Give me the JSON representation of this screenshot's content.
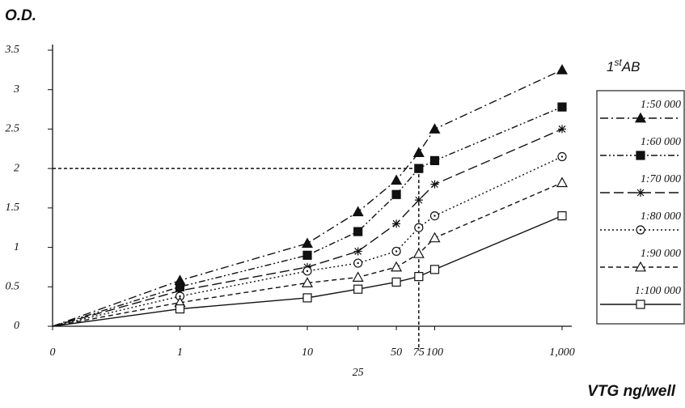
{
  "chart_data": {
    "type": "line",
    "y_label": "O.D.",
    "x_label": "VTG ng/well",
    "legend_title": [
      "1",
      "st",
      "AB"
    ],
    "xscale": "log",
    "x": [
      0,
      1,
      10,
      25,
      50,
      75,
      100,
      1000
    ],
    "xlim": [
      0.1,
      1000
    ],
    "xticks": [
      0,
      1,
      10,
      25,
      50,
      75,
      100,
      {
        "value": 1000,
        "label": "1,000"
      }
    ],
    "ylim": [
      0,
      3.5
    ],
    "yticks": [
      0,
      0.5,
      1,
      1.5,
      2,
      2.5,
      3,
      3.5
    ],
    "guide": {
      "x": 75,
      "y": 2
    },
    "series": [
      {
        "name": "1:50 000",
        "color": "#111111",
        "marker": "triangle-filled",
        "dash": "10 4 2 4",
        "values": [
          0,
          0.58,
          1.05,
          1.45,
          1.85,
          2.2,
          2.5,
          3.25
        ]
      },
      {
        "name": "1:60 000",
        "color": "#111111",
        "marker": "square-filled",
        "dash": "8 3 2 3 2 3",
        "values": [
          0,
          0.5,
          0.9,
          1.2,
          1.67,
          2.0,
          2.1,
          2.78
        ]
      },
      {
        "name": "1:70 000",
        "color": "#111111",
        "marker": "star",
        "dash": "12 5",
        "values": [
          0,
          0.45,
          0.75,
          0.95,
          1.3,
          1.6,
          1.8,
          2.5
        ]
      },
      {
        "name": "1:80 000",
        "color": "#111111",
        "marker": "circle-dot",
        "dash": "2 3",
        "values": [
          0,
          0.38,
          0.7,
          0.8,
          0.95,
          1.25,
          1.4,
          2.15
        ]
      },
      {
        "name": "1:90 000",
        "color": "#111111",
        "marker": "triangle-open",
        "dash": "6 4",
        "values": [
          0,
          0.3,
          0.55,
          0.62,
          0.75,
          0.92,
          1.12,
          1.82
        ]
      },
      {
        "name": "1:100 000",
        "color": "#111111",
        "marker": "square-open",
        "dash": "",
        "values": [
          0,
          0.22,
          0.36,
          0.47,
          0.56,
          0.63,
          0.72,
          1.4
        ]
      }
    ]
  }
}
